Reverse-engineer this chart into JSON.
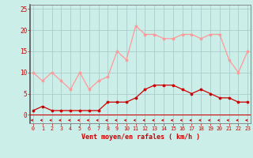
{
  "x": [
    0,
    1,
    2,
    3,
    4,
    5,
    6,
    7,
    8,
    9,
    10,
    11,
    12,
    13,
    14,
    15,
    16,
    17,
    18,
    19,
    20,
    21,
    22,
    23
  ],
  "vent_moyen": [
    1,
    2,
    1,
    1,
    1,
    1,
    1,
    1,
    3,
    3,
    3,
    4,
    6,
    7,
    7,
    7,
    6,
    5,
    6,
    5,
    4,
    4,
    3,
    3
  ],
  "en_rafales": [
    10,
    8,
    10,
    8,
    6,
    10,
    6,
    8,
    9,
    15,
    13,
    21,
    19,
    19,
    18,
    18,
    19,
    19,
    18,
    19,
    19,
    13,
    10,
    15
  ],
  "bg_color": "#cceee8",
  "grid_color": "#aacccc",
  "line_color_moyen": "#cc0000",
  "line_color_rafales": "#ff9999",
  "xlabel": "Vent moyen/en rafales ( km/h )",
  "yticks": [
    0,
    5,
    10,
    15,
    20,
    25
  ],
  "ylim": [
    -2.0,
    26
  ],
  "xlim": [
    -0.3,
    23.3
  ],
  "tick_color": "#cc0000",
  "spine_color": "#888888"
}
